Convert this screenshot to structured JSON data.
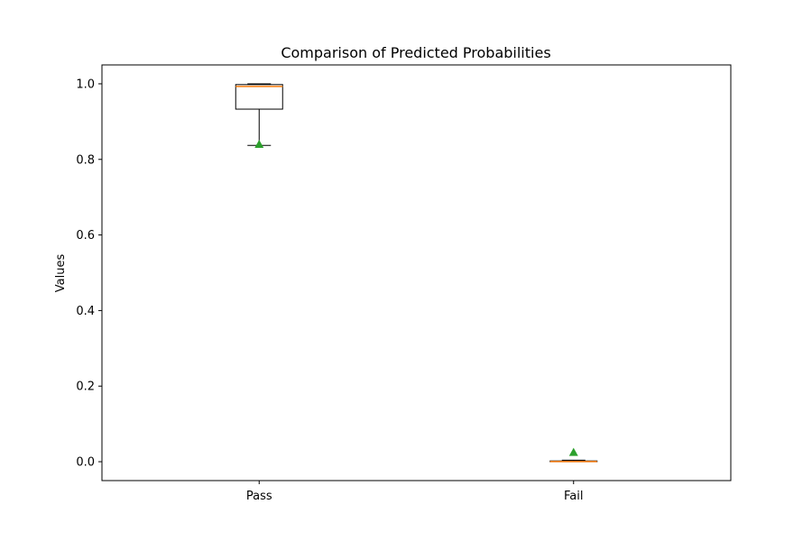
{
  "chart_data": {
    "type": "box",
    "title": "Comparison of Predicted Probabilities",
    "xlabel": "",
    "ylabel": "Values",
    "ylim": [
      -0.05,
      1.05
    ],
    "yticks": [
      0.0,
      0.2,
      0.4,
      0.6,
      0.8,
      1.0
    ],
    "ytick_labels": [
      "0.0",
      "0.2",
      "0.4",
      "0.6",
      "0.8",
      "1.0"
    ],
    "categories": [
      "Pass",
      "Fail"
    ],
    "boxes": [
      {
        "category": "Pass",
        "whisker_low": 0.837,
        "q1": 0.933,
        "median": 0.993,
        "q3": 0.998,
        "whisker_high": 1.0,
        "mean": 0.84
      },
      {
        "category": "Fail",
        "whisker_low": 0.0,
        "q1": 0.0,
        "median": 0.0005,
        "q3": 0.002,
        "whisker_high": 0.004,
        "mean": 0.025
      }
    ],
    "colors": {
      "box": "#000000",
      "median": "#ff7f0e",
      "mean": "#2ca02c"
    },
    "grid": false,
    "legend": "none"
  }
}
